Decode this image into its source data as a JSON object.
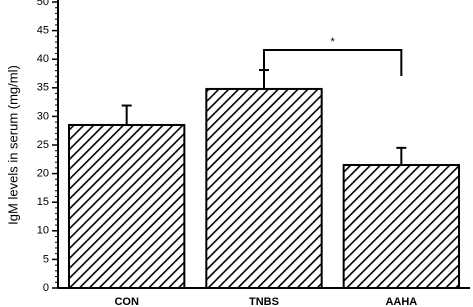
{
  "chart_data": {
    "type": "bar",
    "ylabel": "IgM levels in serum (mg/ml)",
    "categories": [
      "CON",
      "TNBS",
      "AAHA"
    ],
    "values": [
      28.5,
      34.8,
      21.5
    ],
    "errors": [
      3.4,
      3.3,
      3.0
    ],
    "color": "#000000",
    "ylim": [
      0,
      50
    ],
    "yticks": [
      0,
      5,
      10,
      15,
      20,
      25,
      30,
      35,
      40,
      45,
      50
    ],
    "annotation": "*"
  }
}
